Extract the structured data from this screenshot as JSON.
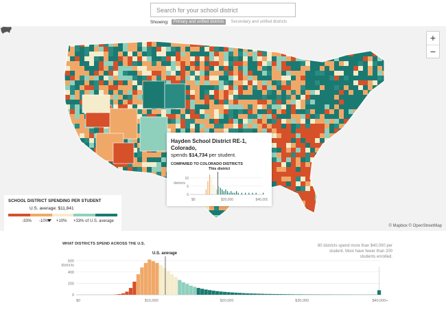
{
  "search": {
    "placeholder": "Search for your school district"
  },
  "showing": {
    "label": "Showing:",
    "options": [
      "Primary and unified districts",
      "Secondary and unified districts"
    ]
  },
  "map_controls": {
    "zoom_in": "+",
    "zoom_out": "−",
    "home_icon": "us-map-icon"
  },
  "attribution": "© Mapbox © OpenStreetMap",
  "legend": {
    "title": "SCHOOL DISTRICT SPENDING PER STUDENT",
    "average": "U.S. average: $11,841",
    "ticks": [
      "-33%",
      "-10%",
      "+10%",
      "+33% of U.S. average"
    ],
    "colors": [
      "#d6502a",
      "#f0a868",
      "#f5eccc",
      "#8fd0bd",
      "#1a7a72"
    ]
  },
  "tooltip": {
    "district": "Hayden School District RE-1, Colorado,",
    "spend_prefix": "spends",
    "amount": "$14,734",
    "spend_suffix": "per student.",
    "compare_title": "COMPARED TO COLORADO DISTRICTS",
    "this_district": "This district",
    "y_ticks": [
      "10",
      "5",
      "0"
    ],
    "y_label": "districts",
    "x_ticks": [
      "$0",
      "$20,000",
      "$40,000+"
    ]
  },
  "histogram": {
    "title": "WHAT DISTRICTS SPEND ACROSS THE U.S.",
    "us_average_label": "U.S. average",
    "note": "80 districts spend more than $40,000 per student. Most have fewer than 200 students enrolled.",
    "y_ticks": [
      "600",
      "400",
      "200",
      "0"
    ],
    "y_label": "districts",
    "x_ticks": [
      "$0",
      "$10,000",
      "$20,000",
      "$30,000",
      "$40,000+"
    ]
  },
  "chart_data": [
    {
      "type": "bar",
      "title": "WHAT DISTRICTS SPEND ACROSS THE U.S.",
      "xlabel": "",
      "ylabel": "districts",
      "ylim": [
        0,
        640
      ],
      "xlim": [
        0,
        40000
      ],
      "bin_width": 500,
      "average": 11841,
      "x": [
        5000,
        5500,
        6000,
        6500,
        7000,
        7500,
        8000,
        8500,
        9000,
        9500,
        10000,
        10500,
        11000,
        11500,
        12000,
        12500,
        13000,
        13500,
        14000,
        14500,
        15000,
        15500,
        16000,
        16500,
        17000,
        17500,
        18000,
        18500,
        19000,
        19500,
        20000,
        20500,
        21000,
        21500,
        22000,
        22500,
        23000,
        23500,
        24000,
        24500,
        25000,
        25500,
        26000,
        26500,
        27000,
        27500,
        28000,
        28500,
        29000,
        29500,
        30000,
        30500,
        31000,
        31500,
        32000,
        32500,
        33000,
        33500,
        34000,
        34500,
        35000,
        35500,
        36000,
        36500,
        37000,
        37500,
        38000,
        38500,
        39000,
        39500,
        40000
      ],
      "values": [
        5,
        12,
        25,
        55,
        120,
        230,
        360,
        480,
        560,
        620,
        590,
        560,
        520,
        470,
        420,
        360,
        310,
        260,
        220,
        190,
        160,
        140,
        120,
        105,
        92,
        82,
        72,
        64,
        57,
        51,
        46,
        41,
        37,
        33,
        29,
        26,
        23,
        21,
        19,
        17,
        15,
        14,
        13,
        12,
        11,
        10,
        9,
        8,
        7,
        7,
        6,
        6,
        5,
        5,
        5,
        4,
        4,
        4,
        3,
        3,
        3,
        3,
        3,
        2,
        2,
        2,
        2,
        2,
        2,
        2,
        80
      ]
    },
    {
      "type": "bar",
      "title": "COMPARED TO COLORADO DISTRICTS",
      "xlabel": "",
      "ylabel": "districts",
      "ylim": [
        0,
        12
      ],
      "xlim": [
        0,
        40000
      ],
      "highlight_x": 14734,
      "x": [
        8000,
        9000,
        10000,
        11000,
        12000,
        13000,
        14000,
        15000,
        16000,
        17000,
        18000,
        19000,
        20000,
        21000,
        22000,
        23000,
        24000,
        25000,
        26000,
        28000,
        30000,
        32000,
        34000,
        36000,
        40000
      ],
      "values": [
        3,
        8,
        12,
        10,
        6,
        4,
        3,
        5,
        4,
        3,
        2,
        3,
        2,
        1,
        2,
        1,
        1,
        2,
        1,
        1,
        1,
        1,
        1,
        1,
        1
      ]
    }
  ]
}
